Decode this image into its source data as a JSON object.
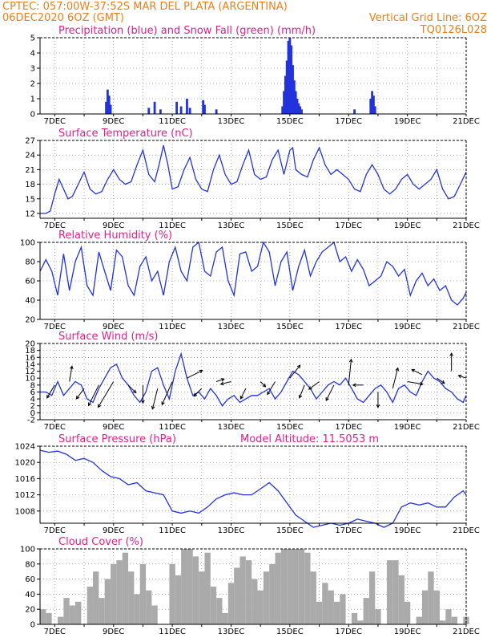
{
  "header": {
    "line1": "CPTEC:  057:00W-37:52S  MAR DEL PLATA (ARGENTINA)",
    "line2_left": "06DEC2020 6OZ (GMT)",
    "line2_right": "Vertical Grid Line: 6OZ",
    "line3_right": "TQ0126L028"
  },
  "colors": {
    "header": "#e8801a",
    "title": "#e0208a",
    "line": "#2233dd",
    "snow": "#22aa22",
    "cloud": "#aaaaaa"
  },
  "x_ticks": [
    "7DEC",
    "9DEC",
    "11DEC",
    "13DEC",
    "15DEC",
    "17DEC",
    "19DEC",
    "21DEC"
  ],
  "chart_data": [
    {
      "type": "bar",
      "title": "Precipitation (blue) and Snow Fall (green) (mm/h)",
      "ylim": [
        0,
        5
      ],
      "yticks": [
        "0",
        "1",
        "2",
        "3",
        "4",
        "5"
      ],
      "x_range_days": [
        6.5,
        21
      ],
      "series": [
        {
          "name": "Precipitation",
          "points": [
            [
              8.75,
              0.8
            ],
            [
              8.8,
              1.6
            ],
            [
              8.85,
              1.2
            ],
            [
              8.9,
              0.6
            ],
            [
              10.2,
              0.4
            ],
            [
              10.4,
              0.8
            ],
            [
              10.6,
              0.3
            ],
            [
              11.15,
              0.8
            ],
            [
              11.3,
              0.5
            ],
            [
              11.5,
              1.0
            ],
            [
              11.6,
              0.4
            ],
            [
              12.05,
              0.9
            ],
            [
              12.1,
              0.6
            ],
            [
              12.5,
              0.3
            ],
            [
              14.75,
              0.5
            ],
            [
              14.8,
              1.5
            ],
            [
              14.85,
              2.5
            ],
            [
              14.9,
              3.5
            ],
            [
              14.95,
              4.8
            ],
            [
              15.0,
              5.0
            ],
            [
              15.05,
              4.5
            ],
            [
              15.1,
              3.2
            ],
            [
              15.15,
              2.2
            ],
            [
              15.2,
              1.5
            ],
            [
              15.25,
              1.0
            ],
            [
              15.3,
              0.7
            ],
            [
              15.35,
              0.5
            ],
            [
              15.4,
              0.3
            ],
            [
              17.2,
              0.3
            ],
            [
              17.75,
              1.0
            ],
            [
              17.8,
              1.5
            ],
            [
              17.85,
              1.2
            ],
            [
              17.9,
              0.5
            ]
          ]
        },
        {
          "name": "Snow Fall",
          "points": []
        }
      ]
    },
    {
      "type": "line",
      "title": "Surface Temperature (nC)",
      "ylim": [
        11,
        27
      ],
      "yticks": [
        "12",
        "15",
        "18",
        "21",
        "24",
        "27"
      ],
      "x": [
        6.5,
        6.7,
        6.85,
        7.0,
        7.15,
        7.3,
        7.45,
        7.6,
        7.8,
        8.0,
        8.2,
        8.4,
        8.6,
        8.8,
        9.0,
        9.2,
        9.4,
        9.6,
        9.8,
        10.0,
        10.2,
        10.4,
        10.55,
        10.7,
        10.85,
        11.0,
        11.2,
        11.4,
        11.6,
        11.8,
        12.0,
        12.2,
        12.4,
        12.6,
        12.8,
        13.0,
        13.2,
        13.4,
        13.6,
        13.8,
        14.0,
        14.2,
        14.4,
        14.6,
        14.8,
        15.0,
        15.1,
        15.2,
        15.4,
        15.6,
        15.8,
        16.0,
        16.2,
        16.4,
        16.6,
        16.8,
        17.0,
        17.2,
        17.4,
        17.6,
        17.8,
        18.0,
        18.2,
        18.4,
        18.6,
        18.8,
        19.0,
        19.2,
        19.4,
        19.6,
        19.8,
        20.0,
        20.2,
        20.4,
        20.6,
        20.8,
        21.0
      ],
      "y": [
        12,
        12,
        12.5,
        16,
        19,
        17,
        15,
        15.5,
        18,
        20.5,
        17,
        16,
        16.5,
        19,
        21,
        19,
        18,
        18.5,
        22,
        25,
        20,
        18.5,
        22,
        26,
        22,
        17,
        17.5,
        21,
        23.5,
        19,
        17,
        16.5,
        21,
        24,
        20,
        18,
        18.5,
        22,
        25,
        20,
        19,
        19.5,
        23,
        25,
        20,
        25,
        25.5,
        21,
        20,
        19.5,
        23,
        25.5,
        22,
        20,
        21,
        20,
        19,
        17,
        16.5,
        20,
        22,
        20,
        17,
        16,
        17,
        19,
        20,
        18,
        17,
        18,
        19,
        21,
        17,
        15,
        15.5,
        18,
        20.5
      ]
    },
    {
      "type": "line",
      "title": "Relative Humidity (%)",
      "ylim": [
        20,
        100
      ],
      "yticks": [
        "20",
        "40",
        "60",
        "80",
        "100"
      ],
      "x": [
        6.5,
        6.7,
        6.9,
        7.1,
        7.3,
        7.5,
        7.7,
        7.9,
        8.1,
        8.3,
        8.5,
        8.7,
        8.9,
        9.1,
        9.3,
        9.5,
        9.7,
        9.9,
        10.1,
        10.3,
        10.5,
        10.7,
        10.9,
        11.1,
        11.3,
        11.5,
        11.7,
        11.9,
        12.1,
        12.3,
        12.5,
        12.7,
        12.9,
        13.1,
        13.3,
        13.5,
        13.7,
        13.9,
        14.1,
        14.3,
        14.5,
        14.7,
        14.9,
        15.1,
        15.3,
        15.5,
        15.7,
        15.9,
        16.1,
        16.3,
        16.5,
        16.7,
        16.9,
        17.1,
        17.3,
        17.5,
        17.7,
        17.9,
        18.1,
        18.3,
        18.5,
        18.7,
        18.9,
        19.1,
        19.3,
        19.5,
        19.7,
        19.9,
        20.1,
        20.3,
        20.5,
        20.7,
        20.9,
        21.0
      ],
      "y": [
        70,
        82,
        70,
        45,
        88,
        50,
        80,
        95,
        55,
        45,
        90,
        70,
        50,
        92,
        85,
        55,
        45,
        75,
        85,
        60,
        70,
        45,
        80,
        95,
        70,
        60,
        95,
        100,
        70,
        65,
        90,
        95,
        60,
        45,
        88,
        90,
        70,
        75,
        100,
        90,
        55,
        80,
        90,
        50,
        75,
        92,
        65,
        80,
        90,
        95,
        100,
        80,
        85,
        70,
        82,
        72,
        55,
        60,
        65,
        80,
        75,
        65,
        72,
        45,
        60,
        68,
        55,
        62,
        50,
        55,
        40,
        35,
        42,
        48
      ]
    },
    {
      "type": "line",
      "title": "Surface Wind (m/s)",
      "ylim": [
        -2,
        20
      ],
      "yticks": [
        "-2",
        "0",
        "2",
        "4",
        "6",
        "8",
        "10",
        "12",
        "14",
        "16",
        "18",
        "20"
      ],
      "x": [
        6.5,
        6.7,
        6.9,
        7.1,
        7.3,
        7.5,
        7.7,
        7.9,
        8.1,
        8.3,
        8.5,
        8.7,
        8.9,
        9.1,
        9.3,
        9.5,
        9.7,
        9.9,
        10.1,
        10.3,
        10.5,
        10.7,
        10.9,
        11.1,
        11.3,
        11.5,
        11.7,
        11.9,
        12.1,
        12.3,
        12.5,
        12.7,
        12.9,
        13.1,
        13.3,
        13.5,
        13.7,
        13.9,
        14.1,
        14.3,
        14.5,
        14.7,
        14.9,
        15.1,
        15.3,
        15.5,
        15.7,
        15.9,
        16.1,
        16.3,
        16.5,
        16.7,
        16.9,
        17.1,
        17.3,
        17.5,
        17.7,
        17.9,
        18.1,
        18.3,
        18.5,
        18.7,
        18.9,
        19.1,
        19.3,
        19.5,
        19.7,
        19.9,
        20.1,
        20.3,
        20.5,
        20.7,
        20.9,
        21.0
      ],
      "y": [
        6,
        6,
        5,
        9,
        5,
        7,
        9,
        8,
        4,
        3,
        7,
        10,
        13,
        14,
        10,
        8,
        5,
        3,
        6,
        12,
        13,
        8,
        4,
        12,
        17,
        10,
        5,
        6,
        4,
        7,
        5,
        2,
        4,
        5,
        3,
        4,
        5,
        5,
        6,
        7,
        4,
        6,
        9,
        12,
        11,
        9,
        7,
        4,
        6,
        8,
        9,
        8,
        10,
        7,
        4,
        3,
        5,
        7,
        8,
        6,
        3,
        7,
        8,
        6,
        5,
        9,
        12,
        10,
        9,
        7,
        6,
        4,
        3,
        5
      ],
      "wind_vectors": [
        [
          7.0,
          8,
          -3,
          -5
        ],
        [
          7.5,
          9,
          1,
          6
        ],
        [
          8.0,
          7,
          -3,
          -4
        ],
        [
          8.5,
          8,
          -4,
          -8
        ],
        [
          9.0,
          9,
          -6,
          -10
        ],
        [
          9.5,
          8,
          3,
          -3
        ],
        [
          10.0,
          8,
          0,
          -7
        ],
        [
          10.5,
          7,
          -2,
          -8
        ],
        [
          11.0,
          9,
          -4,
          -9
        ],
        [
          11.5,
          10,
          6,
          3
        ],
        [
          12.0,
          7,
          -3,
          -3
        ],
        [
          12.5,
          9,
          3,
          1
        ],
        [
          13.0,
          9,
          -4,
          -1
        ],
        [
          13.5,
          7,
          -2,
          -4
        ],
        [
          14.0,
          9,
          2,
          -2
        ],
        [
          14.5,
          9,
          -3,
          -5
        ],
        [
          15.0,
          10,
          4,
          5
        ],
        [
          15.5,
          8,
          -2,
          -5
        ],
        [
          16.0,
          9,
          -4,
          -3
        ],
        [
          16.5,
          8,
          -3,
          -6
        ],
        [
          17.0,
          8,
          1,
          10
        ],
        [
          17.5,
          8,
          -4,
          0
        ],
        [
          18.0,
          6,
          0,
          -6
        ],
        [
          18.5,
          7,
          2,
          8
        ],
        [
          19.0,
          9,
          6,
          -1
        ],
        [
          19.5,
          11,
          -4,
          2
        ],
        [
          20.0,
          10,
          3,
          -2
        ],
        [
          20.5,
          12,
          0,
          7
        ],
        [
          21.0,
          10,
          -3,
          1
        ]
      ]
    },
    {
      "type": "line",
      "title": "Surface Pressure (hPa)",
      "annotation": "Model Altitude: 11.5053 m",
      "ylim": [
        1005,
        1024
      ],
      "yticks": [
        "1008",
        "1012",
        "1016",
        "1020",
        "1024"
      ],
      "x": [
        6.5,
        6.8,
        7.1,
        7.4,
        7.7,
        8.0,
        8.3,
        8.6,
        8.9,
        9.2,
        9.5,
        9.8,
        10.1,
        10.4,
        10.7,
        11.0,
        11.3,
        11.6,
        11.9,
        12.2,
        12.5,
        12.8,
        13.1,
        13.4,
        13.7,
        14.0,
        14.3,
        14.6,
        14.9,
        15.2,
        15.5,
        15.8,
        16.1,
        16.4,
        16.7,
        17.0,
        17.3,
        17.6,
        17.9,
        18.2,
        18.5,
        18.8,
        19.1,
        19.4,
        19.7,
        20.0,
        20.3,
        20.6,
        20.9,
        21.0
      ],
      "y": [
        1023,
        1022.5,
        1022.8,
        1022,
        1020.5,
        1021,
        1020,
        1018,
        1016.5,
        1016,
        1014.5,
        1015,
        1013,
        1012.5,
        1012,
        1008,
        1007.5,
        1008,
        1007.5,
        1009,
        1011,
        1012,
        1012.5,
        1012,
        1012,
        1013.5,
        1015,
        1013,
        1010,
        1007,
        1005.5,
        1004,
        1004.5,
        1005,
        1004.5,
        1005,
        1006,
        1005.5,
        1005,
        1004,
        1005,
        1009,
        1010,
        1009.5,
        1010,
        1009,
        1009,
        1011.5,
        1013,
        1012
      ]
    },
    {
      "type": "bar",
      "title": "Cloud Cover (%)",
      "ylim": [
        0,
        100
      ],
      "yticks": [
        "0",
        "20",
        "40",
        "60",
        "80",
        "100"
      ],
      "x": [
        6.6,
        6.8,
        7.0,
        7.2,
        7.4,
        7.6,
        7.8,
        8.0,
        8.2,
        8.4,
        8.6,
        8.8,
        9.0,
        9.2,
        9.4,
        9.6,
        9.8,
        10.0,
        10.2,
        10.4,
        10.6,
        10.8,
        11.0,
        11.2,
        11.4,
        11.6,
        11.8,
        12.0,
        12.2,
        12.4,
        12.6,
        12.8,
        13.0,
        13.2,
        13.4,
        13.6,
        13.8,
        14.0,
        14.2,
        14.4,
        14.6,
        14.8,
        15.0,
        15.2,
        15.4,
        15.6,
        15.8,
        16.0,
        16.2,
        16.4,
        16.6,
        16.8,
        17.0,
        17.2,
        17.4,
        17.6,
        17.8,
        18.0,
        18.2,
        18.4,
        18.6,
        18.8,
        19.0,
        19.2,
        19.4,
        19.6,
        19.8,
        20.0,
        20.2,
        20.4,
        20.6,
        20.8,
        21.0
      ],
      "values": [
        20,
        15,
        0,
        10,
        35,
        25,
        30,
        0,
        50,
        70,
        35,
        60,
        80,
        85,
        95,
        70,
        40,
        80,
        45,
        25,
        0,
        0,
        80,
        65,
        100,
        100,
        90,
        70,
        95,
        50,
        35,
        15,
        55,
        75,
        90,
        85,
        60,
        45,
        70,
        80,
        95,
        100,
        100,
        100,
        100,
        95,
        70,
        30,
        55,
        45,
        30,
        40,
        0,
        15,
        5,
        35,
        70,
        20,
        0,
        85,
        85,
        65,
        30,
        0,
        10,
        45,
        70,
        45,
        5,
        20,
        10,
        0,
        10
      ]
    }
  ]
}
